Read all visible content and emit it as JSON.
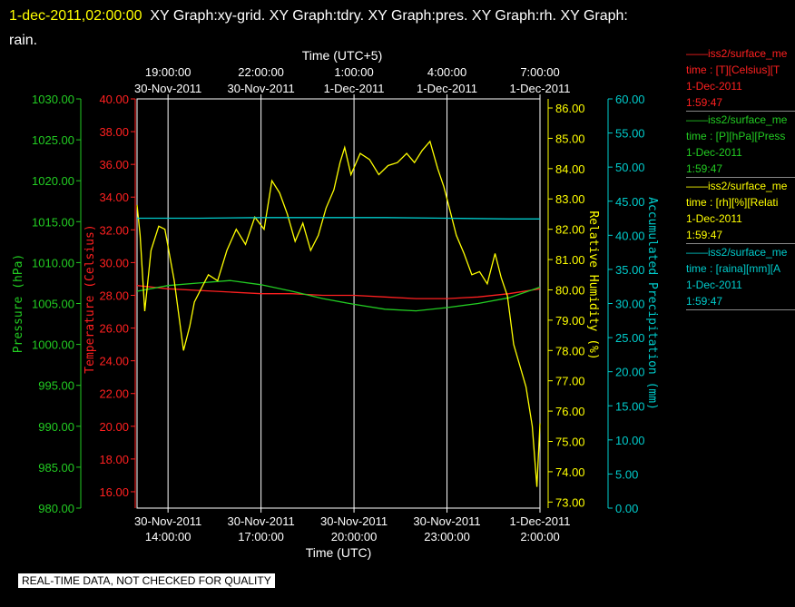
{
  "header": {
    "date_text": "1-dec-2011,02:00:00",
    "line1_rest": "XY Graph:xy-grid.  XY Graph:tdry.  XY Graph:pres.  XY Graph:rh.  XY Graph:",
    "line2": "rain."
  },
  "notice": "REAL-TIME DATA, NOT CHECKED FOR QUALITY",
  "colors": {
    "background": "#000000",
    "temperature": "#ff2020",
    "pressure": "#22cc22",
    "humidity": "#ffff00",
    "precip": "#00cccc",
    "grid": "#ffffff",
    "text": "#ffffff"
  },
  "legend": [
    {
      "color": "#ff2020",
      "lines": [
        "——iss2/surface_me",
        "time : [T][Celsius][T",
        "1-Dec-2011",
        "1:59:47"
      ]
    },
    {
      "color": "#22cc22",
      "lines": [
        "——iss2/surface_me",
        "time : [P][hPa][Press",
        "1-Dec-2011",
        "1:59:47"
      ]
    },
    {
      "color": "#ffff00",
      "lines": [
        "——iss2/surface_me",
        "time : [rh][%][Relati",
        "1-Dec-2011",
        "1:59:47"
      ]
    },
    {
      "color": "#00cccc",
      "lines": [
        "——iss2/surface_me",
        "time : [raina][mm][A",
        "1-Dec-2011",
        "1:59:47"
      ]
    }
  ],
  "chart_data": {
    "type": "line",
    "top_axis_title": "Time (UTC+5)",
    "bottom_axis_title": "Time (UTC)",
    "x_range": [
      "30-Nov-2011 13:00:00",
      "1-Dec-2011 02:00:00"
    ],
    "x_ticks_bottom": [
      {
        "x": 1,
        "date": "30-Nov-2011",
        "time": "14:00:00"
      },
      {
        "x": 4,
        "date": "30-Nov-2011",
        "time": "17:00:00"
      },
      {
        "x": 7,
        "date": "30-Nov-2011",
        "time": "20:00:00"
      },
      {
        "x": 10,
        "date": "30-Nov-2011",
        "time": "23:00:00"
      },
      {
        "x": 13,
        "date": "1-Dec-2011",
        "time": "2:00:00"
      }
    ],
    "x_ticks_top": [
      {
        "x": 1,
        "time": "19:00:00",
        "date": "30-Nov-2011"
      },
      {
        "x": 4,
        "time": "22:00:00",
        "date": "30-Nov-2011"
      },
      {
        "x": 7,
        "time": "1:00:00",
        "date": "1-Dec-2011"
      },
      {
        "x": 10,
        "time": "4:00:00",
        "date": "1-Dec-2011"
      },
      {
        "x": 13,
        "time": "7:00:00",
        "date": "1-Dec-2011"
      }
    ],
    "axes": {
      "pressure": {
        "label": "Pressure (hPa)",
        "ylim": [
          980,
          1030
        ],
        "ticks": [
          "1030.00",
          "1025.00",
          "1020.00",
          "1015.00",
          "1010.00",
          "1005.00",
          "1000.00",
          "995.00",
          "990.00",
          "985.00",
          "980.00"
        ]
      },
      "temperature": {
        "label": "Temperature (Celsius)",
        "ylim": [
          15,
          40
        ],
        "ticks": [
          "40.00",
          "38.00",
          "36.00",
          "34.00",
          "32.00",
          "30.00",
          "28.00",
          "26.00",
          "24.00",
          "22.00",
          "20.00",
          "18.00",
          "16.00"
        ]
      },
      "humidity": {
        "label": "Relative Humidity (%)",
        "ylim": [
          72.8,
          86.3
        ],
        "ticks": [
          "86.00",
          "85.00",
          "84.00",
          "83.00",
          "82.00",
          "81.00",
          "80.00",
          "79.00",
          "78.00",
          "77.00",
          "76.00",
          "75.00",
          "74.00",
          "73.00"
        ]
      },
      "precip": {
        "label": "Accumulated Precipitation (mm)",
        "ylim": [
          0,
          60
        ],
        "ticks": [
          "60.00",
          "55.00",
          "50.00",
          "45.00",
          "40.00",
          "35.00",
          "30.00",
          "25.00",
          "20.00",
          "15.00",
          "10.00",
          "5.00",
          "0.00"
        ]
      }
    },
    "series": [
      {
        "name": "Temperature",
        "axis": "temperature",
        "color": "#ff2020",
        "x": [
          0,
          1,
          2,
          3,
          4,
          5,
          6,
          7,
          8,
          9,
          10,
          11,
          12,
          13
        ],
        "values": [
          28.6,
          28.4,
          28.3,
          28.2,
          28.1,
          28.1,
          28.0,
          28.0,
          27.9,
          27.8,
          27.8,
          27.9,
          28.1,
          28.4
        ]
      },
      {
        "name": "Pressure",
        "axis": "pressure",
        "color": "#22cc22",
        "x": [
          0,
          1,
          2,
          3,
          4,
          5,
          6,
          7,
          8,
          9,
          10,
          11,
          12,
          13
        ],
        "values": [
          1006.5,
          1007.2,
          1007.5,
          1007.8,
          1007.3,
          1006.5,
          1005.6,
          1004.9,
          1004.3,
          1004.1,
          1004.5,
          1005.0,
          1005.7,
          1007.0
        ]
      },
      {
        "name": "Relative Humidity",
        "axis": "humidity",
        "color": "#ffff00",
        "x": [
          0,
          0.1,
          0.25,
          0.45,
          0.7,
          0.9,
          1.2,
          1.5,
          1.7,
          1.85,
          2.05,
          2.3,
          2.6,
          2.9,
          3.2,
          3.5,
          3.8,
          4.1,
          4.35,
          4.6,
          4.85,
          5.1,
          5.35,
          5.6,
          5.85,
          6.1,
          6.35,
          6.55,
          6.7,
          6.9,
          7.2,
          7.5,
          7.8,
          8.1,
          8.4,
          8.7,
          8.95,
          9.2,
          9.45,
          9.7,
          9.9,
          10.1,
          10.3,
          10.55,
          10.8,
          11.05,
          11.3,
          11.55,
          11.75,
          11.95,
          12.15,
          12.35,
          12.55,
          12.75,
          12.9,
          13.0
        ],
        "values": [
          82.8,
          81.8,
          79.3,
          81.3,
          82.1,
          82.0,
          80.3,
          78.0,
          78.8,
          79.6,
          80.0,
          80.5,
          80.3,
          81.3,
          82.0,
          81.5,
          82.4,
          82.0,
          83.6,
          83.2,
          82.5,
          81.6,
          82.2,
          81.3,
          81.8,
          82.7,
          83.3,
          84.2,
          84.7,
          83.8,
          84.5,
          84.3,
          83.8,
          84.1,
          84.2,
          84.5,
          84.2,
          84.6,
          84.9,
          84.0,
          83.4,
          82.6,
          81.8,
          81.2,
          80.5,
          80.6,
          80.2,
          81.2,
          80.4,
          79.8,
          78.2,
          77.5,
          76.8,
          75.5,
          73.5,
          75.6
        ]
      },
      {
        "name": "Accumulated Precipitation",
        "axis": "precip",
        "color": "#00cccc",
        "x": [
          0,
          2,
          4,
          6,
          8,
          10,
          12,
          13
        ],
        "values": [
          42.5,
          42.5,
          42.6,
          42.6,
          42.6,
          42.5,
          42.4,
          42.4
        ]
      }
    ]
  }
}
